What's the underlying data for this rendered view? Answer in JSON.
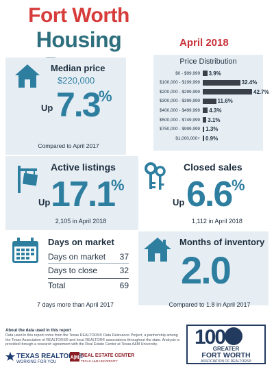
{
  "header": {
    "title_line1": "Fort Worth",
    "title_line2": "Housing Report",
    "date": "April 2018"
  },
  "median": {
    "label": "Median price",
    "value": "$220,000",
    "direction": "Up",
    "change": "7.3",
    "unit": "%",
    "compare": "Compared to April 2017"
  },
  "price_distribution": {
    "title": "Price Distribution",
    "rows": [
      {
        "range": "$0 - $99,999",
        "pct": "3.9%",
        "value": 3.9
      },
      {
        "range": "$100,000 - $199,999",
        "pct": "32.4%",
        "value": 32.4
      },
      {
        "range": "$200,000 - $299,999",
        "pct": "42.7%",
        "value": 42.7
      },
      {
        "range": "$300,000 - $399,999",
        "pct": "11.6%",
        "value": 11.6
      },
      {
        "range": "$400,000 - $499,999",
        "pct": "4.3%",
        "value": 4.3
      },
      {
        "range": "$500,000 - $749,999",
        "pct": "3.1%",
        "value": 3.1
      },
      {
        "range": "$750,000 - $999,999",
        "pct": "1.3%",
        "value": 1.3
      },
      {
        "range": "$1,000,000+",
        "pct": "0.9%",
        "value": 0.9
      }
    ]
  },
  "active": {
    "label": "Active listings",
    "direction": "Up",
    "change": "17.1",
    "unit": "%",
    "sub": "2,105 in April 2018"
  },
  "closed": {
    "label": "Closed sales",
    "direction": "Up",
    "change": "6.6",
    "unit": "%",
    "sub": "1,112 in April 2018"
  },
  "days": {
    "label": "Days on market",
    "rows": [
      {
        "name": "Days on market",
        "value": "37"
      },
      {
        "name": "Days to close",
        "value": "32"
      },
      {
        "name": "Total",
        "value": "69"
      }
    ],
    "sub": "7 days more than April 2017"
  },
  "months": {
    "label": "Months of inventory",
    "value": "2.0",
    "sub": "Compared to 1.8 in April 2017"
  },
  "footer": {
    "title": "About the data used in this report",
    "text": "Data used in this report come from the Texas REALTORS® Data Relevance Project, a partnership among the Texas Association of REALTORS® and local REALTOR® associations throughout the state. Analysis is provided through a research agreement with the Real Estate Center at Texas A&M University.",
    "logo_tr": "TEXAS REALTORS®",
    "logo_tr_sub": "WORKING FOR YOU",
    "logo_rec": "REAL ESTATE CENTER",
    "logo_rec_sub": "TEXAS A&M UNIVERSITY",
    "gfw_100": "100",
    "gfw_line1": "GREATER",
    "gfw_line2": "FORT WORTH",
    "gfw_line3": "ASSOCIATION OF REALTORS®"
  },
  "colors": {
    "title_red": "#d63c3a",
    "title_teal": "#2e6f7e",
    "accent_blue": "#2e7ea0",
    "bar_dark": "#3b3f47",
    "panel_bg": "#e6eef4"
  }
}
